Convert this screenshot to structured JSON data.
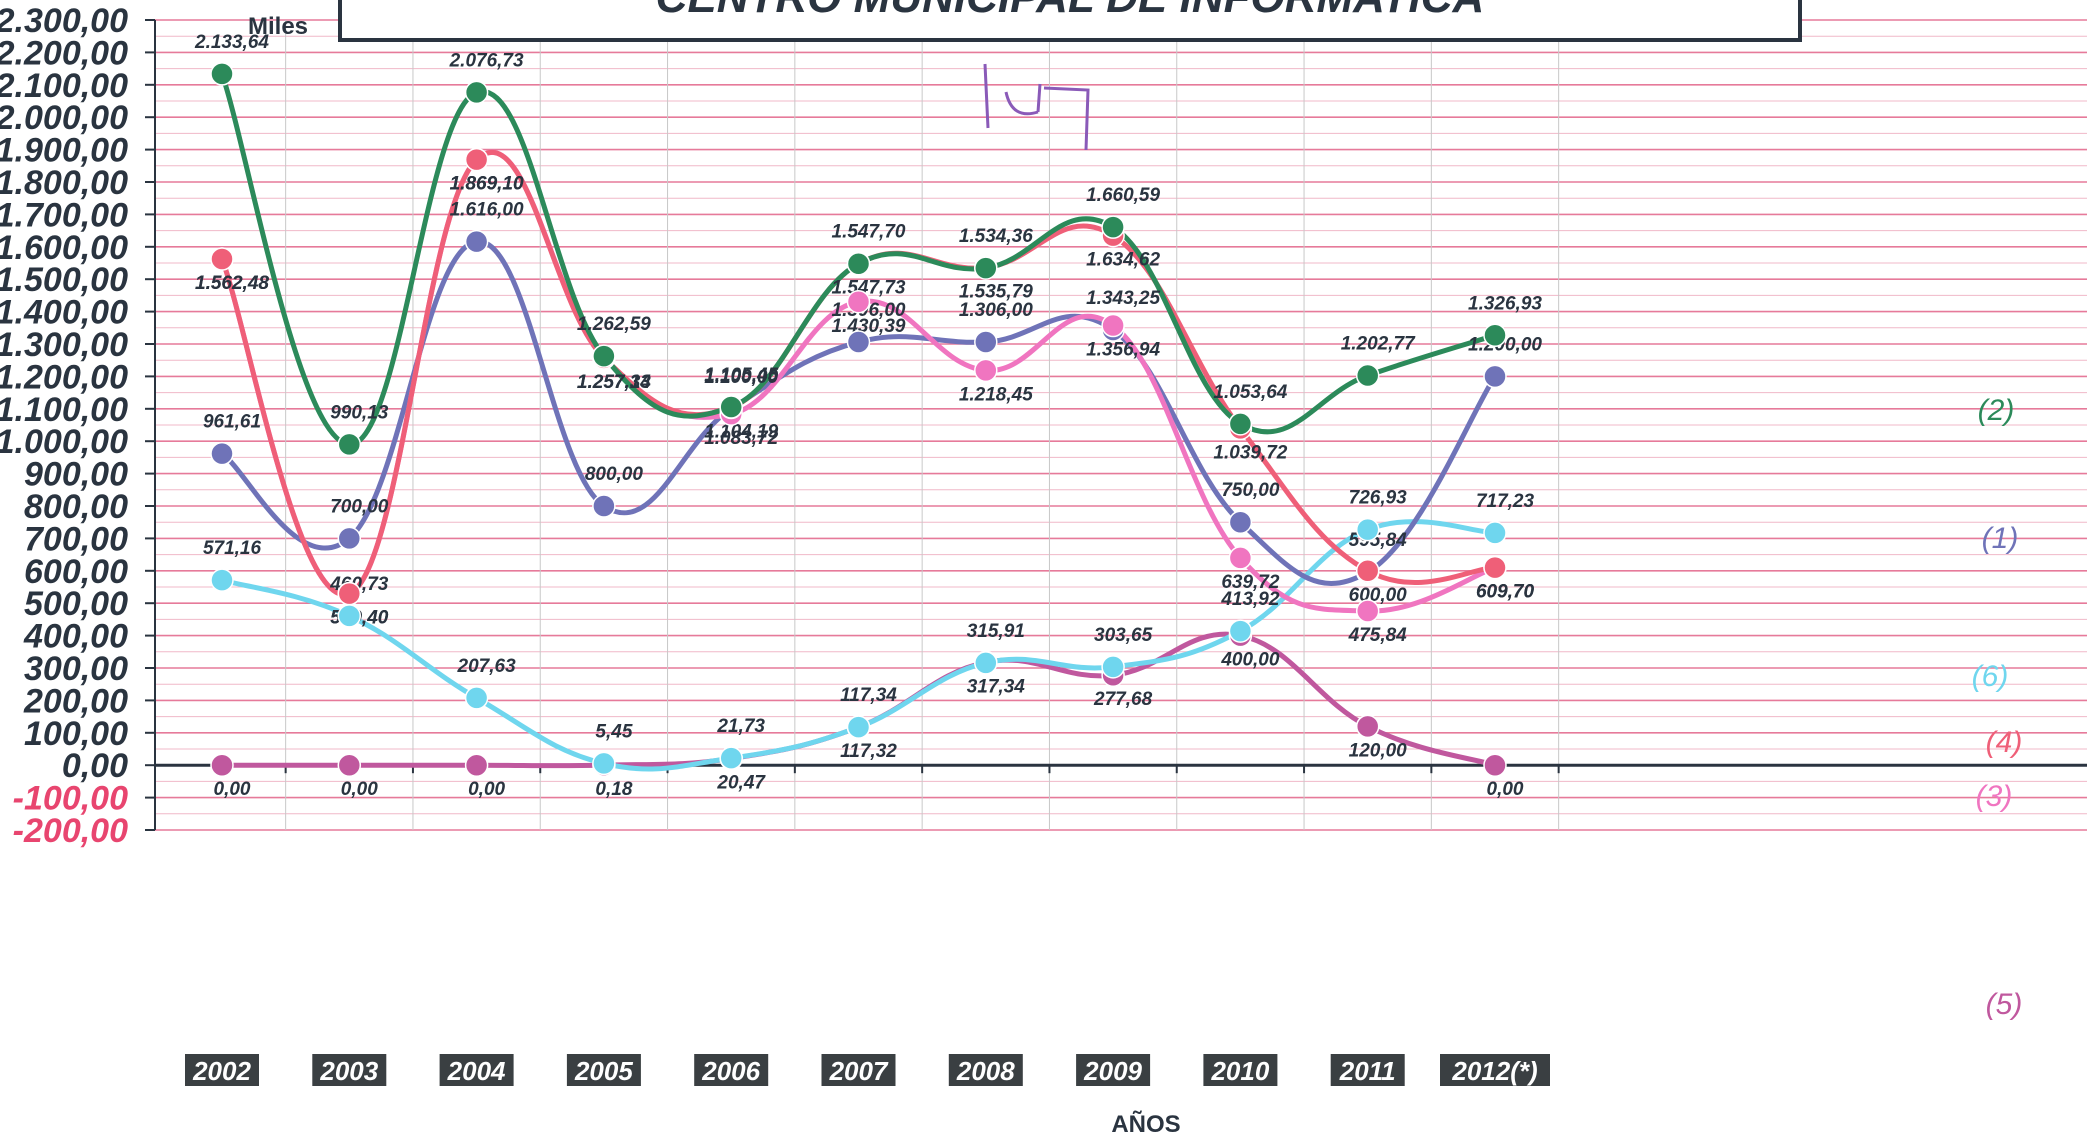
{
  "chart_data": {
    "type": "line",
    "title": "CENTRO MUNICIPAL DE INFORMATICA",
    "unit_label": "Miles",
    "xlabel": "AÑOS",
    "ylabel": "",
    "ylim": [
      -200,
      2300
    ],
    "grid": true,
    "categories": [
      "2002",
      "2003",
      "2004",
      "2005",
      "2006",
      "2007",
      "2008",
      "2009",
      "2010",
      "2011",
      "2012(*)"
    ],
    "yticks": [
      "2.300,00",
      "2.200,00",
      "2.100,00",
      "2.000,00",
      "1.900,00",
      "1.800,00",
      "1.700,00",
      "1.600,00",
      "1.500,00",
      "1.400,00",
      "1.300,00",
      "1.200,00",
      "1.100,00",
      "1.000,00",
      "900,00",
      "800,00",
      "700,00",
      "600,00",
      "500,00",
      "400,00",
      "300,00",
      "200,00",
      "100,00",
      "0,00",
      "-100,00",
      "-200,00"
    ],
    "series": [
      {
        "marker": "(1)",
        "color": "#6f73b8",
        "values": [
          961.61,
          700.0,
          1616.0,
          800.0,
          1100.0,
          1306.0,
          1306.0,
          1343.25,
          750.0,
          595.84,
          1200.0
        ],
        "labels": [
          "961,61",
          "700,00",
          "1.616,00",
          "800,00",
          "1.100,00",
          "1.306,00",
          "1.306,00",
          "1.343,25",
          "750,00",
          "595,84",
          "1.200,00"
        ]
      },
      {
        "marker": "(2)",
        "color": "#2c8a5a",
        "values": [
          2133.64,
          990.13,
          2076.73,
          1262.59,
          1105.45,
          1547.7,
          1534.36,
          1660.59,
          1053.64,
          1202.77,
          1326.93
        ],
        "labels": [
          "2.133,64",
          "990,13",
          "2.076,73",
          "1.262,59",
          "1.105,45",
          "1.547,70",
          "1.534,36",
          "1.660,59",
          "1.053,64",
          "1.202,77",
          "1.326,93"
        ]
      },
      {
        "marker": "(3)",
        "color": "#f075c0",
        "values": [
          1562.48,
          529.4,
          1869.1,
          1257.14,
          1083.72,
          1430.39,
          1218.45,
          1356.94,
          639.72,
          475.84,
          609.7
        ],
        "labels": [
          "1.562,48",
          "529,40",
          "1.869,10",
          "1.257,14",
          "1.083,72",
          "1.430,39",
          "1.218,45",
          "1.356,94",
          "639,72",
          "475,84",
          "609,70"
        ]
      },
      {
        "marker": "(4)",
        "color": "#ef5f78",
        "values": [
          1562.48,
          529.4,
          1869.1,
          1257.33,
          1104.19,
          1547.73,
          1535.79,
          1634.62,
          1039.72,
          600.0,
          609.7
        ],
        "labels": [
          "1.562,48",
          "529,40",
          "1.869,10",
          "1.257,33",
          "1.104,19",
          "1.547,73",
          "1.535,79",
          "1.634,62",
          "1.039,72",
          "600,00",
          "609,70"
        ]
      },
      {
        "marker": "(5)",
        "color": "#c0589e",
        "values": [
          0.0,
          0.0,
          0.0,
          0.18,
          20.47,
          117.32,
          317.34,
          277.68,
          400.0,
          120.0,
          0.0
        ],
        "labels": [
          "0,00",
          "0,00",
          "0,00",
          "0,18",
          "20,47",
          "117,32",
          "317,34",
          "277,68",
          "400,00",
          "120,00",
          "0,00"
        ]
      },
      {
        "marker": "(6)",
        "color": "#6fd6ee",
        "values": [
          571.16,
          460.73,
          207.63,
          5.45,
          21.73,
          117.34,
          315.91,
          303.65,
          413.92,
          726.93,
          717.23
        ],
        "labels": [
          "571,16",
          "460,73",
          "207,63",
          "5,45",
          "21,73",
          "117,34",
          "315,91",
          "303,65",
          "413,92",
          "726,93",
          "717,23"
        ]
      }
    ],
    "handwritten_note": "147"
  }
}
